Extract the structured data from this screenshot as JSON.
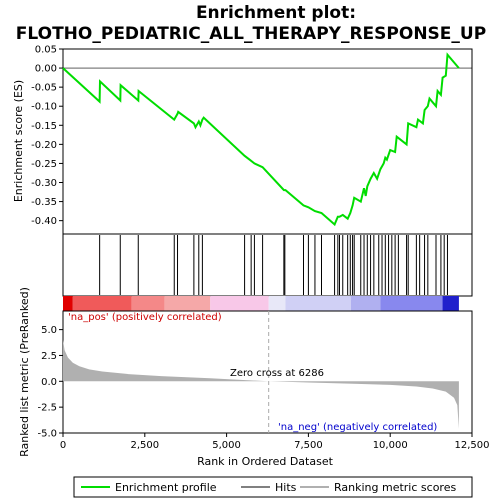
{
  "chart_data": {
    "type": "line",
    "title_line1": "Enrichment plot:",
    "title_line2": "FLOTHO_PEDIATRIC_ALL_THERAPY_RESPONSE_UP",
    "top_panel": {
      "ylabel": "Enrichment score (ES)",
      "ylim": [
        -0.435,
        0.05
      ],
      "yticks": [
        0.05,
        0.0,
        -0.05,
        -0.1,
        -0.15,
        -0.2,
        -0.25,
        -0.3,
        -0.35,
        -0.4
      ],
      "ytick_labels": [
        "0.05",
        "0.00",
        "-0.05",
        "-0.10",
        "-0.15",
        "-0.20",
        "-0.25",
        "-0.30",
        "-0.35",
        "-0.40"
      ],
      "series": [
        {
          "name": "Enrichment profile",
          "color": "#00dd00",
          "x": [
            0,
            1120,
            1130,
            1750,
            1760,
            2300,
            2310,
            3400,
            3500,
            3520,
            4000,
            4050,
            4150,
            4200,
            4260,
            4300,
            5550,
            5700,
            5850,
            6100,
            6750,
            6780,
            6800,
            7350,
            7500,
            7700,
            7900,
            8300,
            8400,
            8450,
            8550,
            8700,
            8780,
            8850,
            8900,
            9100,
            9200,
            9250,
            9300,
            9400,
            9500,
            9600,
            9700,
            9800,
            9850,
            9900,
            10000,
            10150,
            10200,
            10500,
            10550,
            10800,
            10850,
            11000,
            11050,
            11150,
            11200,
            11400,
            11450,
            11550,
            11600,
            11700,
            11750,
            12100
          ],
          "y": [
            0.0,
            -0.088,
            -0.035,
            -0.085,
            -0.045,
            -0.085,
            -0.06,
            -0.135,
            -0.12,
            -0.115,
            -0.145,
            -0.155,
            -0.14,
            -0.15,
            -0.135,
            -0.13,
            -0.23,
            -0.24,
            -0.25,
            -0.26,
            -0.32,
            -0.32,
            -0.32,
            -0.36,
            -0.365,
            -0.375,
            -0.38,
            -0.41,
            -0.39,
            -0.39,
            -0.385,
            -0.395,
            -0.38,
            -0.36,
            -0.34,
            -0.35,
            -0.315,
            -0.335,
            -0.31,
            -0.29,
            -0.275,
            -0.29,
            -0.265,
            -0.25,
            -0.235,
            -0.24,
            -0.215,
            -0.22,
            -0.18,
            -0.2,
            -0.145,
            -0.155,
            -0.135,
            -0.145,
            -0.11,
            -0.1,
            -0.08,
            -0.1,
            -0.06,
            -0.07,
            -0.025,
            -0.02,
            0.035,
            0.0
          ]
        }
      ]
    },
    "hits": {
      "name": "Hits",
      "x": [
        1120,
        1750,
        2300,
        3400,
        3500,
        4000,
        4150,
        4260,
        5550,
        5750,
        5850,
        6100,
        6750,
        6780,
        7350,
        7500,
        7700,
        7900,
        8300,
        8400,
        8450,
        8550,
        8700,
        8780,
        8850,
        8900,
        9100,
        9200,
        9300,
        9400,
        9500,
        9650,
        9750,
        9850,
        9950,
        10050,
        10150,
        10250,
        10500,
        10550,
        10800,
        10900,
        11050,
        11150,
        11400,
        11550,
        11650,
        11750
      ]
    },
    "bottom_panel": {
      "ylabel": "Ranked list metric (PreRanked)",
      "xlabel": "Rank in Ordered Dataset",
      "ylim": [
        -5.0,
        6.8
      ],
      "yticks": [
        5.0,
        2.5,
        0.0,
        -2.5,
        -5.0
      ],
      "ytick_labels": [
        "5.0",
        "2.5",
        "0.0",
        "-2.5",
        "-5.0"
      ],
      "xlim": [
        0,
        12500
      ],
      "xticks": [
        0,
        2500,
        5000,
        7500,
        10000,
        12500
      ],
      "xtick_labels": [
        "0",
        "2,500",
        "5,000",
        "7,500",
        "10,000",
        "12,500"
      ],
      "zero_cross_label": "Zero cross at 6286",
      "zero_cross": 6286,
      "pos_label": "'na_pos' (positively correlated)",
      "neg_label": "'na_neg' (negatively correlated)",
      "metric_x": [
        0,
        50,
        150,
        300,
        500,
        800,
        1200,
        2000,
        3000,
        4500,
        6286,
        7500,
        9000,
        10000,
        10800,
        11300,
        11700,
        11950,
        12050,
        12100
      ],
      "metric_y": [
        4.0,
        3.0,
        2.3,
        1.8,
        1.45,
        1.15,
        0.95,
        0.7,
        0.5,
        0.3,
        0.0,
        -0.12,
        -0.25,
        -0.35,
        -0.5,
        -0.7,
        -1.0,
        -1.6,
        -2.3,
        -4.6
      ],
      "fill_color": "#b0b0b0"
    },
    "xmax": 12100,
    "legend": [
      {
        "label": "Enrichment profile",
        "color": "#00dd00"
      },
      {
        "label": "Hits",
        "color": "#000000"
      },
      {
        "label": "Ranking metric scores",
        "color": "#b0b0b0"
      }
    ]
  }
}
